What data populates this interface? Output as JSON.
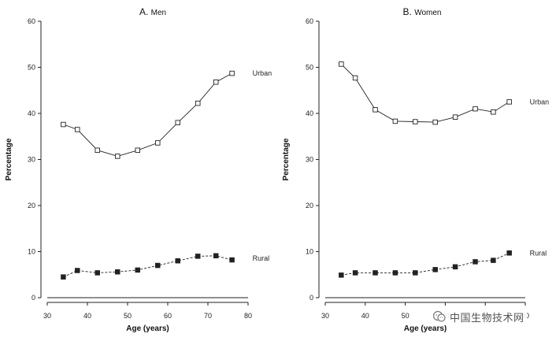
{
  "chart_data": [
    {
      "type": "line",
      "title_letter": "A.",
      "title_text": "Men",
      "xlabel": "Age (years)",
      "ylabel": "Percentage",
      "xlim": [
        30,
        80
      ],
      "ylim": [
        0,
        60
      ],
      "xticks": [
        30,
        40,
        50,
        60,
        70,
        80
      ],
      "yticks": [
        0,
        10,
        20,
        30,
        40,
        50,
        60
      ],
      "series": [
        {
          "name": "Urban",
          "marker": "open-square",
          "line": "solid",
          "x": [
            34,
            37.5,
            42.5,
            47.5,
            52.5,
            57.5,
            62.5,
            67.5,
            72,
            76
          ],
          "values": [
            37.6,
            36.5,
            32.0,
            30.7,
            32.0,
            33.6,
            38.0,
            42.2,
            46.8,
            48.7
          ]
        },
        {
          "name": "Rural",
          "marker": "filled-square",
          "line": "dashed",
          "x": [
            34,
            37.5,
            42.5,
            47.5,
            52.5,
            57.5,
            62.5,
            67.5,
            72,
            76
          ],
          "values": [
            4.5,
            5.9,
            5.4,
            5.6,
            6.0,
            7.0,
            8.0,
            9.0,
            9.1,
            8.2
          ]
        }
      ]
    },
    {
      "type": "line",
      "title_letter": "B.",
      "title_text": "Women",
      "xlabel": "Age (years)",
      "ylabel": "Percentage",
      "xlim": [
        30,
        80
      ],
      "ylim": [
        0,
        60
      ],
      "xticks": [
        30,
        40,
        50,
        60,
        70,
        80
      ],
      "yticks": [
        0,
        10,
        20,
        30,
        40,
        50,
        60
      ],
      "series": [
        {
          "name": "Urban",
          "marker": "open-square",
          "line": "solid",
          "x": [
            34,
            37.5,
            42.5,
            47.5,
            52.5,
            57.5,
            62.5,
            67.5,
            72,
            76
          ],
          "values": [
            50.7,
            47.7,
            40.8,
            38.3,
            38.2,
            38.1,
            39.2,
            41.0,
            40.3,
            42.5
          ]
        },
        {
          "name": "Rural",
          "marker": "filled-square",
          "line": "dashed",
          "x": [
            34,
            37.5,
            42.5,
            47.5,
            52.5,
            57.5,
            62.5,
            67.5,
            72,
            76
          ],
          "values": [
            4.9,
            5.4,
            5.4,
            5.4,
            5.4,
            6.1,
            6.7,
            7.8,
            8.1,
            9.7
          ]
        }
      ]
    }
  ],
  "watermark": {
    "text": "中国生物技术网"
  }
}
